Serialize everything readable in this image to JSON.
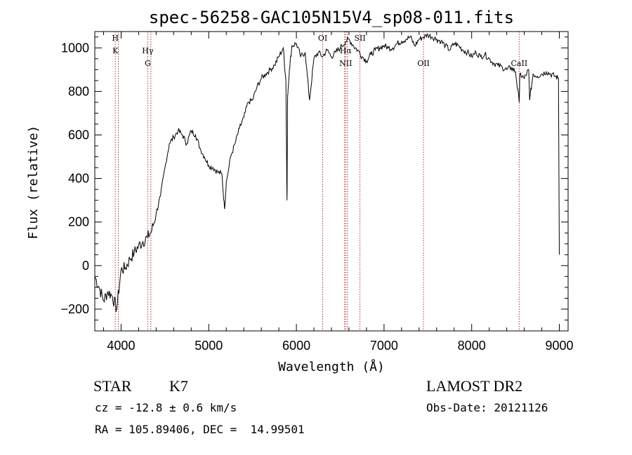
{
  "chart_data": {
    "type": "line",
    "title": "spec-56258-GAC105N15V4_sp08-011.fits",
    "xlabel": "Wavelength (Å)",
    "ylabel": "Flux (relative)",
    "xlim": [
      3700,
      9100
    ],
    "ylim": [
      -300,
      1075
    ],
    "xticks": [
      4000,
      5000,
      6000,
      7000,
      8000,
      9000
    ],
    "yticks": [
      -200,
      0,
      200,
      400,
      600,
      800,
      1000
    ],
    "grid": false,
    "series": [
      {
        "color": "#000000",
        "x": [
          3700,
          3750,
          3800,
          3850,
          3900,
          3950,
          4000,
          4050,
          4100,
          4150,
          4200,
          4250,
          4300,
          4350,
          4400,
          4450,
          4500,
          4550,
          4600,
          4650,
          4700,
          4750,
          4800,
          4850,
          4900,
          4950,
          5000,
          5050,
          5100,
          5150,
          5180,
          5200,
          5250,
          5300,
          5350,
          5400,
          5450,
          5500,
          5550,
          5600,
          5650,
          5700,
          5750,
          5800,
          5850,
          5880,
          5893,
          5900,
          5920,
          5950,
          6000,
          6050,
          6100,
          6150,
          6200,
          6250,
          6300,
          6350,
          6400,
          6450,
          6500,
          6563,
          6600,
          6650,
          6700,
          6750,
          6800,
          6850,
          6900,
          6950,
          7000,
          7050,
          7100,
          7150,
          7200,
          7250,
          7300,
          7350,
          7400,
          7450,
          7500,
          7550,
          7600,
          7650,
          7700,
          7750,
          7800,
          7850,
          7900,
          7950,
          8000,
          8050,
          8100,
          8150,
          8200,
          8250,
          8300,
          8350,
          8400,
          8450,
          8500,
          8542,
          8550,
          8600,
          8650,
          8662,
          8700,
          8750,
          8800,
          8850,
          8900,
          8950,
          8990,
          9000
        ],
        "values": [
          -50,
          -100,
          -160,
          -120,
          -140,
          -200,
          -20,
          -10,
          30,
          60,
          90,
          110,
          130,
          160,
          240,
          320,
          450,
          560,
          590,
          620,
          600,
          560,
          620,
          600,
          540,
          500,
          460,
          450,
          430,
          420,
          260,
          380,
          500,
          560,
          630,
          680,
          750,
          760,
          820,
          860,
          880,
          900,
          920,
          960,
          1000,
          850,
          300,
          780,
          900,
          1010,
          1020,
          960,
          980,
          760,
          950,
          980,
          960,
          990,
          960,
          980,
          1000,
          1030,
          1040,
          1010,
          990,
          960,
          940,
          970,
          990,
          1000,
          1010,
          1000,
          1000,
          1020,
          1030,
          1040,
          1050,
          1010,
          1040,
          1050,
          1060,
          1050,
          1040,
          1030,
          1010,
          990,
          1020,
          1010,
          990,
          980,
          960,
          980,
          960,
          970,
          950,
          930,
          920,
          910,
          900,
          910,
          890,
          750,
          880,
          860,
          900,
          760,
          880,
          870,
          880,
          890,
          880,
          870,
          860,
          50
        ]
      }
    ],
    "lines": [
      {
        "x": 3934,
        "labels": [
          "H",
          "K"
        ],
        "label_row": "high"
      },
      {
        "x": 3968,
        "labels": [],
        "label_row": "high"
      },
      {
        "x": 4304,
        "labels": [
          "Hγ",
          "G"
        ],
        "label_row": "mid"
      },
      {
        "x": 4340,
        "labels": [],
        "label_row": "mid"
      },
      {
        "x": 6300,
        "labels": [
          "OI"
        ],
        "label_row": "high"
      },
      {
        "x": 6548,
        "labels": [],
        "label_row": "high"
      },
      {
        "x": 6563,
        "labels": [
          "Hα",
          "NII"
        ],
        "label_row": "mid"
      },
      {
        "x": 6583,
        "labels": [],
        "label_row": "mid"
      },
      {
        "x": 6725,
        "labels": [
          "SII"
        ],
        "label_row": "high"
      },
      {
        "x": 7450,
        "labels": [
          "OII"
        ],
        "label_row": "low"
      },
      {
        "x": 8542,
        "labels": [
          "CaII"
        ],
        "label_row": "low"
      }
    ]
  },
  "footer": {
    "object_class": "STAR",
    "subclass": "K7",
    "survey": "LAMOST DR2",
    "cz": "cz = -12.8 ± 0.6 km/s",
    "obs_date": "Obs-Date: 20121126",
    "coords": "RA = 105.89406, DEC =  14.99501"
  }
}
